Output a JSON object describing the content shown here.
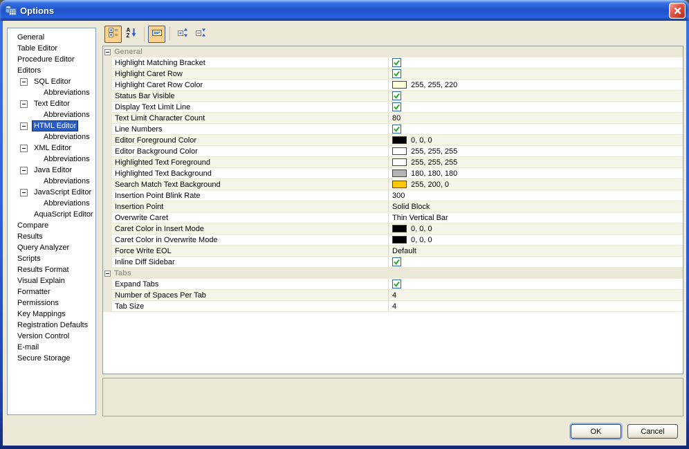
{
  "window": {
    "title": "Options"
  },
  "toolbar": {
    "buttons": [
      {
        "name": "categorized-view",
        "icon": "categorized-icon",
        "pressed": true,
        "sep_before": false
      },
      {
        "name": "alphabetical-sort",
        "icon": "sort-az-icon",
        "pressed": false,
        "sep_before": false
      },
      {
        "name": "show-description",
        "icon": "description-icon",
        "pressed": true,
        "sep_before": true
      },
      {
        "name": "expand-groups",
        "icon": "expand-icon",
        "pressed": false,
        "sep_before": true
      },
      {
        "name": "collapse-groups",
        "icon": "collapse-icon",
        "pressed": false,
        "sep_before": false
      }
    ]
  },
  "sidebar": {
    "items": [
      {
        "label": "General",
        "level": 0
      },
      {
        "label": "Table Editor",
        "level": 0
      },
      {
        "label": "Procedure Editor",
        "level": 0
      },
      {
        "label": "Editors",
        "level": 0
      },
      {
        "label": "SQL Editor",
        "level": 1,
        "collapser": true
      },
      {
        "label": "Abbreviations",
        "level": 2
      },
      {
        "label": "Text Editor",
        "level": 1,
        "collapser": true
      },
      {
        "label": "Abbreviations",
        "level": 2
      },
      {
        "label": "HTML Editor",
        "level": 1,
        "collapser": true,
        "selected": true
      },
      {
        "label": "Abbreviations",
        "level": 2
      },
      {
        "label": "XML Editor",
        "level": 1,
        "collapser": true
      },
      {
        "label": "Abbreviations",
        "level": 2
      },
      {
        "label": "Java Editor",
        "level": 1,
        "collapser": true
      },
      {
        "label": "Abbreviations",
        "level": 2
      },
      {
        "label": "JavaScript Editor",
        "level": 1,
        "collapser": true
      },
      {
        "label": "Abbreviations",
        "level": 2
      },
      {
        "label": "AquaScript Editor",
        "level": 1
      },
      {
        "label": "Compare",
        "level": 0
      },
      {
        "label": "Results",
        "level": 0
      },
      {
        "label": "Query Analyzer",
        "level": 0
      },
      {
        "label": "Scripts",
        "level": 0
      },
      {
        "label": "Results Format",
        "level": 0
      },
      {
        "label": "Visual Explain",
        "level": 0
      },
      {
        "label": "Formatter",
        "level": 0
      },
      {
        "label": "Permissions",
        "level": 0
      },
      {
        "label": "Key Mappings",
        "level": 0
      },
      {
        "label": "Registration Defaults",
        "level": 0
      },
      {
        "label": "Version Control",
        "level": 0
      },
      {
        "label": "E-mail",
        "level": 0
      },
      {
        "label": "Secure Storage",
        "level": 0
      }
    ]
  },
  "property_grid": {
    "groups": [
      {
        "label": "General",
        "rows": [
          {
            "label": "Highlight Matching Bracket",
            "type": "checkbox",
            "checked": true
          },
          {
            "label": "Highlight Caret Row",
            "type": "checkbox",
            "checked": true
          },
          {
            "label": "Highlight Caret Row Color",
            "type": "color",
            "swatch": "#FFFFDC",
            "value": "255, 255, 220"
          },
          {
            "label": "Status Bar Visible",
            "type": "checkbox",
            "checked": true
          },
          {
            "label": "Display Text Limit Line",
            "type": "checkbox",
            "checked": true
          },
          {
            "label": "Text Limit Character Count",
            "type": "text",
            "value": "80"
          },
          {
            "label": "Line Numbers",
            "type": "checkbox",
            "checked": true
          },
          {
            "label": "Editor Foreground Color",
            "type": "color",
            "swatch": "#000000",
            "value": "0, 0, 0"
          },
          {
            "label": "Editor Background Color",
            "type": "color",
            "swatch": "#FFFFFF",
            "value": "255, 255, 255"
          },
          {
            "label": "Highlighted Text Foreground",
            "type": "color",
            "swatch": "#FFFFFF",
            "value": "255, 255, 255"
          },
          {
            "label": "Highlighted Text Background",
            "type": "color",
            "swatch": "#B4B4B4",
            "value": "180, 180, 180"
          },
          {
            "label": "Search Match Text Background",
            "type": "color",
            "swatch": "#FFC800",
            "value": "255, 200, 0"
          },
          {
            "label": "Insertion Point Blink Rate",
            "type": "text",
            "value": "300"
          },
          {
            "label": "Insertion Point",
            "type": "text",
            "value": "Solid Block"
          },
          {
            "label": "Overwrite Caret",
            "type": "text",
            "value": "Thin Vertical Bar"
          },
          {
            "label": "Caret Color in Insert Mode",
            "type": "color",
            "swatch": "#000000",
            "value": "0, 0, 0"
          },
          {
            "label": "Caret Color in Overwrite Mode",
            "type": "color",
            "swatch": "#000000",
            "value": "0, 0, 0"
          },
          {
            "label": "Force Write EOL",
            "type": "text",
            "value": "Default"
          },
          {
            "label": "Inline Diff Sidebar",
            "type": "checkbox",
            "checked": true
          }
        ]
      },
      {
        "label": "Tabs",
        "rows": [
          {
            "label": "Expand Tabs",
            "type": "checkbox",
            "checked": true
          },
          {
            "label": "Number of Spaces Per Tab",
            "type": "text",
            "value": "4"
          },
          {
            "label": "Tab Size",
            "type": "text",
            "value": "4"
          }
        ]
      }
    ]
  },
  "description_panel": {
    "text": ""
  },
  "buttons": {
    "ok": "OK",
    "cancel": "Cancel"
  },
  "colors": {
    "selection": "#2A5CC8",
    "group_header_bg": "#ECE9D8",
    "group_header_text": "#9D9D8D",
    "row_alt": "#F6F6E8",
    "toolbar_pressed": "#FCD28E",
    "checkbox_check": "#1FAA1F",
    "titlebar_blue": "#1F52CA"
  }
}
